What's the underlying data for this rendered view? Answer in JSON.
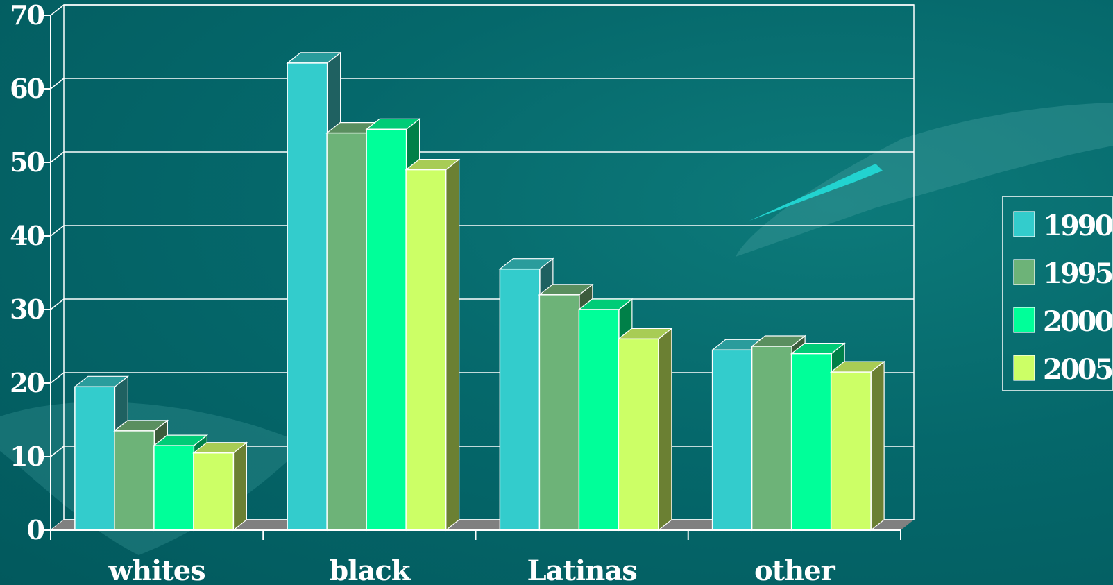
{
  "chart_data": {
    "type": "bar",
    "title": "",
    "xlabel": "",
    "ylabel": "",
    "categories": [
      "whites",
      "black",
      "Latinas",
      "other"
    ],
    "series": [
      {
        "name": "1990",
        "values": [
          19.5,
          63.5,
          35.5,
          24.5
        ]
      },
      {
        "name": "1995",
        "values": [
          13.5,
          54,
          32,
          25
        ]
      },
      {
        "name": "2000",
        "values": [
          11.5,
          54.5,
          30,
          24
        ]
      },
      {
        "name": "2005",
        "values": [
          10.5,
          49,
          26,
          21.5
        ]
      }
    ],
    "ylim": [
      0,
      70
    ],
    "yticks": [
      0,
      10,
      20,
      30,
      40,
      50,
      60,
      70
    ],
    "grid": true,
    "legend_position": "right",
    "colors": {
      "background": "#03676a",
      "grid": "#ffffff",
      "floor": "#808080",
      "series_front": [
        "#33cccc",
        "#6db378",
        "#00ff99",
        "#ccff66"
      ],
      "series_top": [
        "#2a9c9c",
        "#5a8f5f",
        "#00cc77",
        "#a8cc55"
      ],
      "series_side": [
        "#1f6161",
        "#3c5c3c",
        "#008048",
        "#6b8033"
      ]
    }
  }
}
